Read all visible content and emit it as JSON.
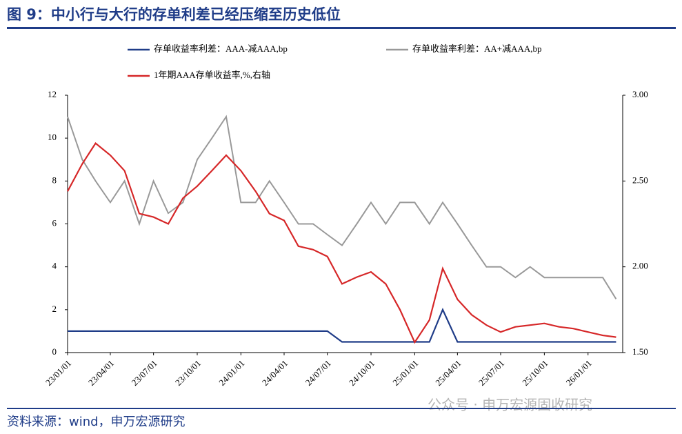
{
  "chart_data": {
    "type": "line",
    "title": "图 9：中小行与大行的存单利差已经压缩至历史低位",
    "source": "资料来源：wind，申万宏源研究",
    "watermark": "公众号 · 申万宏源固收研究",
    "x": [
      "23/01/01",
      "23/02/01",
      "23/03/01",
      "23/04/01",
      "23/05/01",
      "23/06/01",
      "23/07/01",
      "23/08/01",
      "23/09/01",
      "23/10/01",
      "23/11/01",
      "23/12/01",
      "24/01/01",
      "24/02/01",
      "24/03/01",
      "24/04/01",
      "24/05/01",
      "24/06/01",
      "24/07/01",
      "24/08/01",
      "24/09/01",
      "24/10/01",
      "24/11/01",
      "24/12/01",
      "25/01/01",
      "25/02/01",
      "25/03/01",
      "25/04/01",
      "25/05/01",
      "25/06/01",
      "25/07/01",
      "25/08/01",
      "25/09/01",
      "25/10/01",
      "25/11/01",
      "25/12/01",
      "26/01/01",
      "26/02/01",
      "26/03/01"
    ],
    "series": [
      {
        "name": "存单收益率利差：AAA-减AAA,bp",
        "color": "#1f3c88",
        "axis": "y",
        "values": [
          1,
          1,
          1,
          1,
          1,
          1,
          1,
          1,
          1,
          1,
          1,
          1,
          1,
          1,
          1,
          1,
          1,
          1,
          1,
          0.5,
          0.5,
          0.5,
          0.5,
          0.5,
          0.5,
          0.5,
          2,
          0.5,
          0.5,
          0.5,
          0.5,
          0.5,
          0.5,
          0.5,
          0.5,
          0.5,
          0.5,
          0.5,
          0.5
        ]
      },
      {
        "name": "存单收益率利差：AA+减AAA,bp",
        "color": "#999999",
        "axis": "y",
        "values": [
          11,
          9,
          8,
          7,
          8,
          6,
          8,
          6.5,
          7,
          9,
          10,
          11,
          7,
          7,
          8,
          7,
          6,
          6,
          5.5,
          5,
          6,
          7,
          6,
          7,
          7,
          6,
          7,
          6,
          5,
          4,
          4,
          3.5,
          4,
          3.5,
          3.5,
          3.5,
          3.5,
          3.5,
          2.5
        ]
      },
      {
        "name": "1年期AAA存单收益率,%,右轴",
        "color": "#d62728",
        "axis": "y2",
        "values": [
          2.44,
          2.6,
          2.72,
          2.65,
          2.56,
          2.31,
          2.29,
          2.25,
          2.4,
          2.47,
          2.56,
          2.65,
          2.56,
          2.44,
          2.31,
          2.27,
          2.12,
          2.1,
          2.06,
          1.9,
          1.94,
          1.97,
          1.9,
          1.75,
          1.56,
          1.69,
          1.99,
          1.81,
          1.72,
          1.66,
          1.62,
          1.65,
          1.66,
          1.67,
          1.65,
          1.64,
          1.62,
          1.6,
          1.59
        ]
      }
    ],
    "xlim": [
      "23/01/01",
      "26/03/15"
    ],
    "xticks": [
      "23/01/01",
      "23/04/01",
      "23/07/01",
      "23/10/01",
      "24/01/01",
      "24/04/01",
      "24/07/01",
      "24/10/01",
      "25/01/01",
      "25/04/01",
      "25/07/01",
      "25/10/01",
      "26/01/01"
    ],
    "ylim": [
      0,
      12
    ],
    "yticks": [
      0,
      2,
      4,
      6,
      8,
      10,
      12
    ],
    "y2lim": [
      1.5,
      3
    ],
    "y2ticks": [
      {
        "value": 1.5,
        "label": "1.50"
      },
      {
        "value": 2,
        "label": "2.00"
      },
      {
        "value": 2.5,
        "label": "2.50"
      },
      {
        "value": 3,
        "label": "3.00"
      }
    ]
  }
}
